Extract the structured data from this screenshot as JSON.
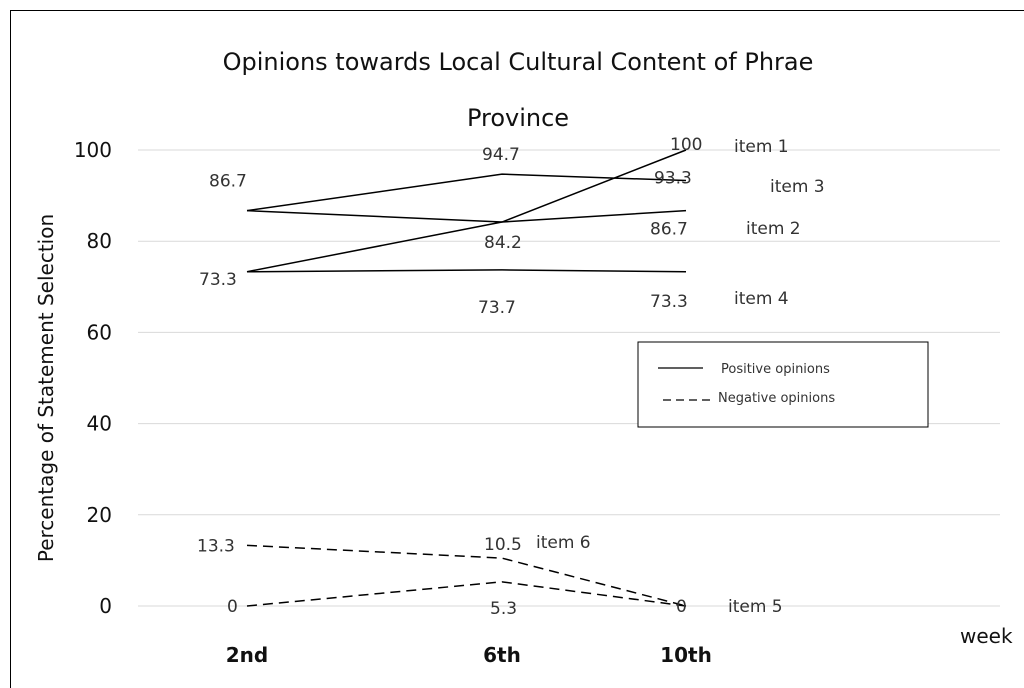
{
  "chart_data": {
    "type": "line",
    "title_line1": "Opinions towards Local Cultural Content of Phrae",
    "title_line2": "Province",
    "ylabel": "Percentage of Statement Selection",
    "xlabel": "week",
    "categories": [
      "2nd",
      "6th",
      "10th"
    ],
    "yticks": [
      "0",
      "20",
      "40",
      "60",
      "80",
      "100"
    ],
    "ylim": [
      0,
      100
    ],
    "grid": true,
    "legend": {
      "position": "right",
      "entries": [
        {
          "label": "Positive opinions",
          "style": "solid"
        },
        {
          "label": "Negative opinions",
          "style": "dashed"
        }
      ]
    },
    "series": [
      {
        "name": "item 1",
        "style": "solid",
        "values": [
          73.3,
          84.2,
          100
        ],
        "labels": [
          "73.3",
          "",
          "100"
        ]
      },
      {
        "name": "item 2",
        "style": "solid",
        "values": [
          86.7,
          84.2,
          86.7
        ],
        "labels": [
          "86.7",
          "84.2",
          "86.7"
        ]
      },
      {
        "name": "item 3",
        "style": "solid",
        "values": [
          86.7,
          94.7,
          93.3
        ],
        "labels": [
          "",
          "94.7",
          "93.3"
        ]
      },
      {
        "name": "item 4",
        "style": "solid",
        "values": [
          73.3,
          73.7,
          73.3
        ],
        "labels": [
          "",
          "73.7",
          "73.3"
        ]
      },
      {
        "name": "item 5",
        "style": "dashed",
        "values": [
          0,
          5.3,
          0
        ],
        "labels": [
          "0",
          "5.3",
          "0"
        ]
      },
      {
        "name": "item 6",
        "style": "dashed",
        "values": [
          13.3,
          10.5,
          0
        ],
        "labels": [
          "13.3",
          "10.5",
          ""
        ]
      }
    ]
  }
}
